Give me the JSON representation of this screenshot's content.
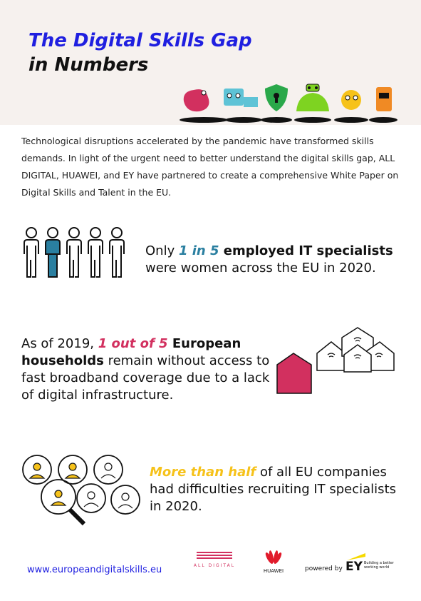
{
  "header": {
    "title_line1": "The Digital Skills Gap",
    "title_line2": "in Numbers"
  },
  "intro": "Technological disruptions accelerated by the pandemic have transformed skills demands. In light of the urgent need to better understand the digital skills gap, ALL DIGITAL, HUAWEI, and EY have partnered to create a comprehensive White Paper on Digital Skills and Talent in the EU.",
  "stat1": {
    "prefix": "Only ",
    "highlight": "1 in 5",
    "bold": " employed IT specialists",
    "suffix": "were women across the EU in 2020."
  },
  "stat2": {
    "prefix": "As of 2019, ",
    "highlight": "1 out of 5",
    "bold": " European households",
    "suffix": " remain without access to fast broadband coverage due to a lack of digital infrastructure."
  },
  "stat3": {
    "highlight": "More than half",
    "rest": " of all EU companies had difficulties recruiting IT specialists in 2020."
  },
  "footer": {
    "url": "www.europeandigitalskills.eu",
    "all_digital": "ALL DIGITAL",
    "huawei": "HUAWEI",
    "powered_by": "powered by",
    "ey": "EY",
    "ey_tagline": "Building a better working world"
  },
  "colors": {
    "title_blue": "#1f1fe0",
    "highlight_blue": "#2a7fa0",
    "highlight_pink": "#d2305f",
    "highlight_yellow": "#f6c21a"
  }
}
